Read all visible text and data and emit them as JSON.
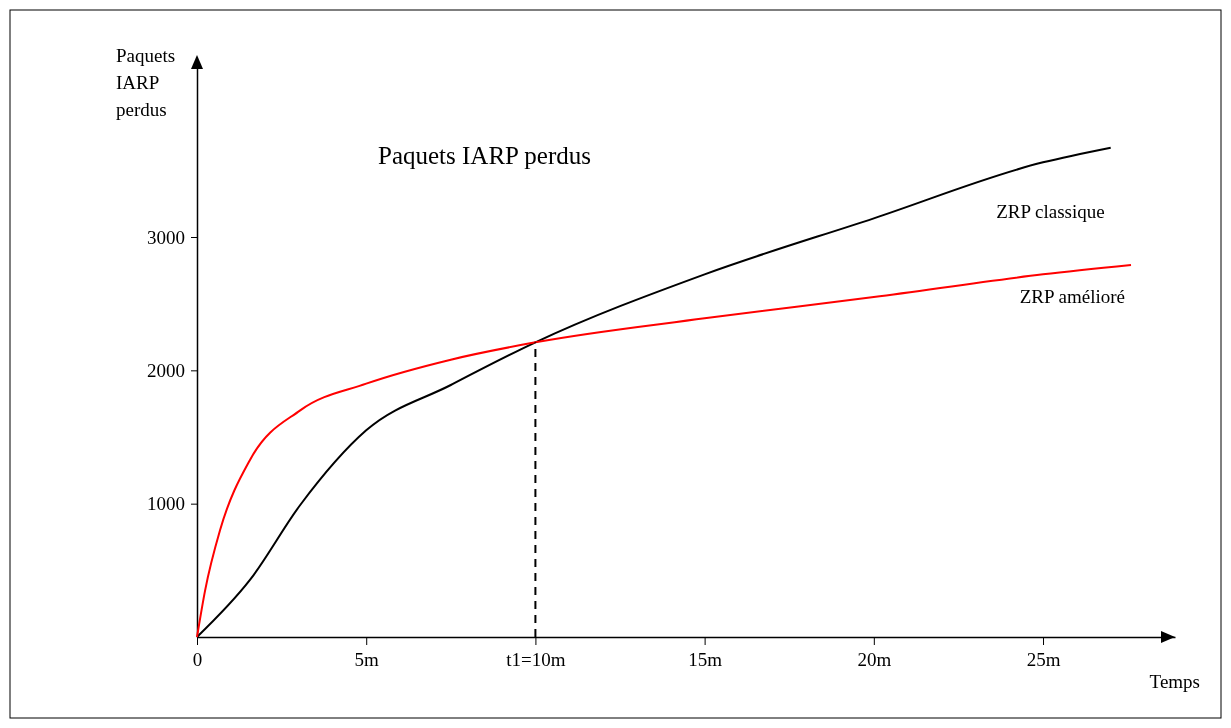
{
  "chart_data": {
    "type": "line",
    "title": "Paquets IARP perdus",
    "xlabel": "Temps",
    "ylabel": "Paquets IARP perdus",
    "xlim": [
      0,
      28.9
    ],
    "ylim": [
      0,
      4290
    ],
    "xticks": [
      0,
      {
        "value": 5,
        "label": "5m"
      },
      {
        "value": 10,
        "label": "t1=10m"
      },
      {
        "value": 15,
        "label": "15m"
      },
      {
        "value": 20,
        "label": "20m"
      },
      {
        "value": 25,
        "label": "25m"
      }
    ],
    "yticks": [
      1000,
      2000,
      3000
    ],
    "grid": false,
    "series": [
      {
        "name": "ZRP classique",
        "color": "#000000",
        "x": [
          0,
          1.57,
          3.05,
          5,
          7.5,
          10,
          15,
          20,
          25,
          27
        ],
        "values": [
          0,
          430,
          990,
          1550,
          1890,
          2210,
          2720,
          3140,
          3560,
          3670
        ]
      },
      {
        "name": "ZRP amélioré",
        "color": "#ff0000",
        "x": [
          0,
          0.24,
          0.68,
          1.57,
          3.05,
          5,
          7.5,
          10,
          15,
          20,
          25,
          27.6
        ],
        "values": [
          0,
          350,
          800,
          1330,
          1700,
          1900,
          2080,
          2210,
          2390,
          2550,
          2720,
          2790
        ]
      }
    ],
    "ref_lines": [
      {
        "axis": "x",
        "value": 10,
        "line_style": "dashed",
        "color": "#000000"
      }
    ]
  }
}
